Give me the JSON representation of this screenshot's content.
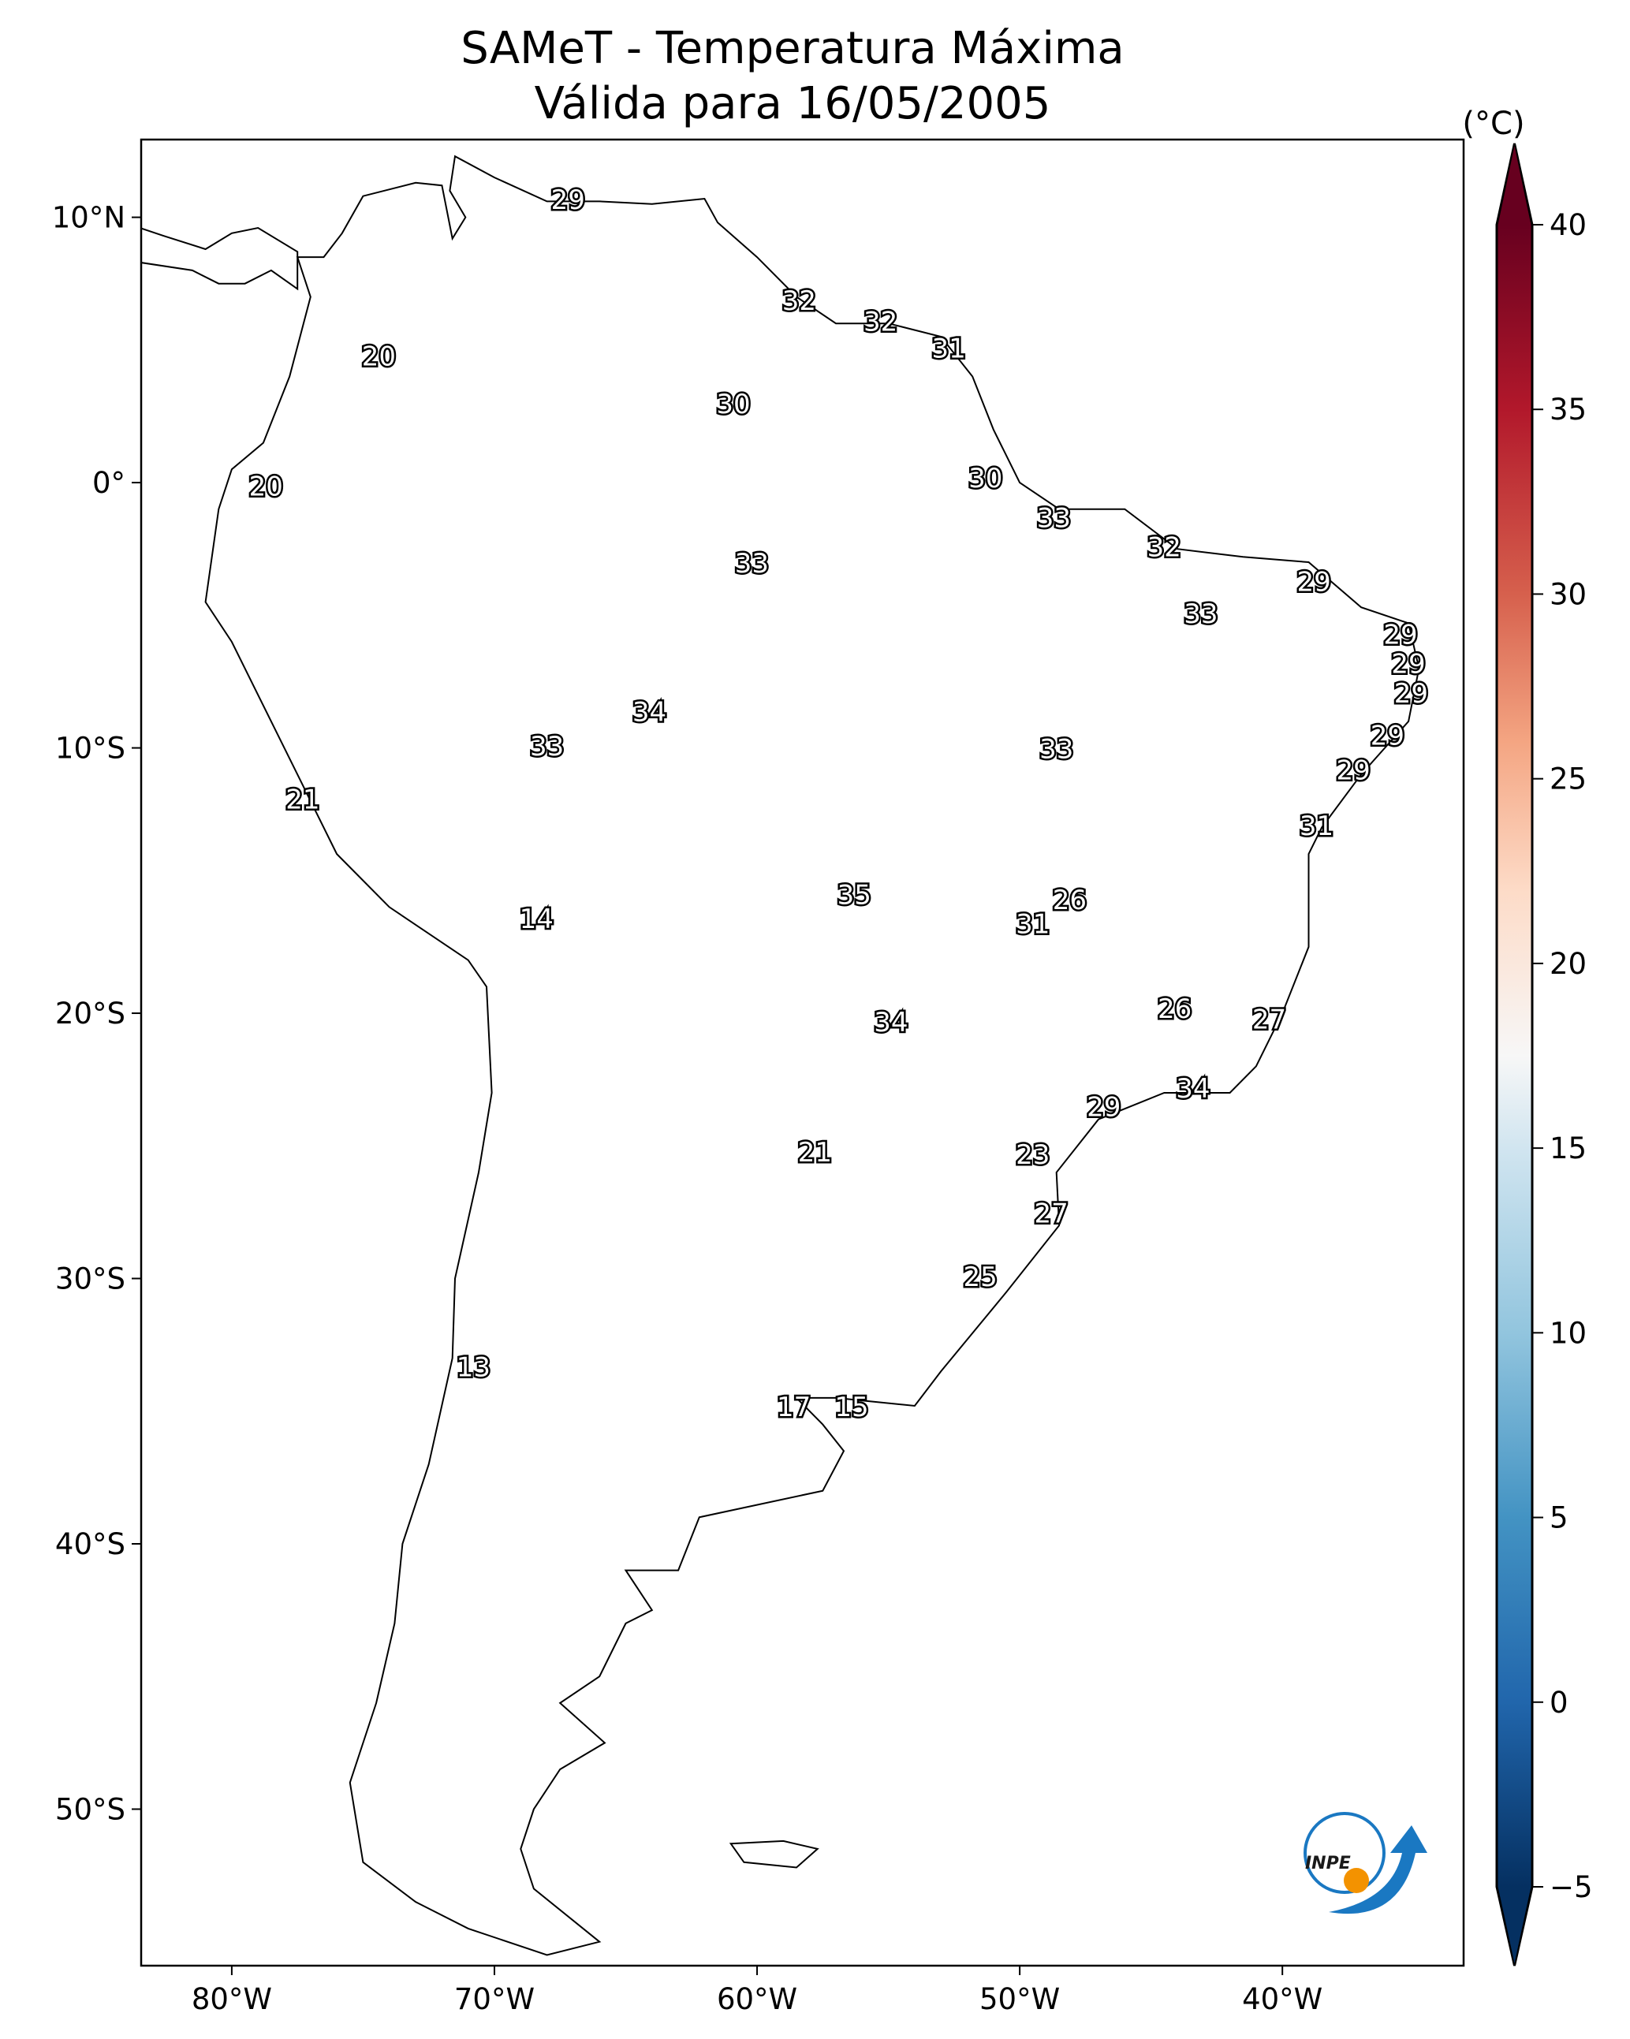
{
  "title": {
    "line1": "SAMeT - Temperatura Máxima",
    "line2": "Válida para 16/05/2005"
  },
  "colorbar": {
    "unit_label": "(°C)",
    "ticks": [
      40,
      35,
      30,
      25,
      20,
      15,
      10,
      5,
      0,
      -5
    ],
    "range": [
      -5,
      40
    ],
    "extend": "both",
    "colormap": "RdBu_r",
    "stops": [
      {
        "value": -5,
        "color": "#053061"
      },
      {
        "value": 0,
        "color": "#2166ac"
      },
      {
        "value": 5,
        "color": "#4393c3"
      },
      {
        "value": 10,
        "color": "#92c5de"
      },
      {
        "value": 15,
        "color": "#d1e5f0"
      },
      {
        "value": 17.5,
        "color": "#f7f7f7"
      },
      {
        "value": 22,
        "color": "#fddbc7"
      },
      {
        "value": 26,
        "color": "#f4a582"
      },
      {
        "value": 30,
        "color": "#d6604d"
      },
      {
        "value": 35,
        "color": "#b2182b"
      },
      {
        "value": 40,
        "color": "#67001f"
      }
    ]
  },
  "axes": {
    "lon_ticks": [
      {
        "value": -80,
        "label": "80°W"
      },
      {
        "value": -70,
        "label": "70°W"
      },
      {
        "value": -60,
        "label": "60°W"
      },
      {
        "value": -50,
        "label": "50°W"
      },
      {
        "value": -40,
        "label": "40°W"
      }
    ],
    "lat_ticks": [
      {
        "value": 10,
        "label": "10°N"
      },
      {
        "value": 0,
        "label": "0°"
      },
      {
        "value": -10,
        "label": "10°S"
      },
      {
        "value": -20,
        "label": "20°S"
      },
      {
        "value": -30,
        "label": "30°S"
      },
      {
        "value": -40,
        "label": "40°S"
      },
      {
        "value": -50,
        "label": "50°S"
      }
    ],
    "lon_range": [
      -83.45,
      -33.1
    ],
    "lat_range": [
      -55.9,
      12.93
    ]
  },
  "stations": [
    {
      "value": "29",
      "lon": -67.2,
      "lat": 10.6
    },
    {
      "value": "20",
      "lon": -74.4,
      "lat": 4.7
    },
    {
      "value": "32",
      "lon": -58.4,
      "lat": 6.8
    },
    {
      "value": "32",
      "lon": -55.3,
      "lat": 6.0
    },
    {
      "value": "31",
      "lon": -52.7,
      "lat": 5.0
    },
    {
      "value": "30",
      "lon": -60.9,
      "lat": 2.9
    },
    {
      "value": "20",
      "lon": -78.7,
      "lat": -0.2
    },
    {
      "value": "30",
      "lon": -51.3,
      "lat": 0.1
    },
    {
      "value": "33",
      "lon": -48.7,
      "lat": -1.4
    },
    {
      "value": "33",
      "lon": -60.2,
      "lat": -3.1
    },
    {
      "value": "32",
      "lon": -44.5,
      "lat": -2.5
    },
    {
      "value": "29",
      "lon": -38.8,
      "lat": -3.8
    },
    {
      "value": "33",
      "lon": -43.1,
      "lat": -5.0
    },
    {
      "value": "29",
      "lon": -35.5,
      "lat": -5.8
    },
    {
      "value": "29",
      "lon": -35.2,
      "lat": -6.9
    },
    {
      "value": "29",
      "lon": -35.1,
      "lat": -8.0
    },
    {
      "value": "34",
      "lon": -64.1,
      "lat": -8.7
    },
    {
      "value": "33",
      "lon": -68.0,
      "lat": -10.0
    },
    {
      "value": "33",
      "lon": -48.6,
      "lat": -10.1
    },
    {
      "value": "29",
      "lon": -36.0,
      "lat": -9.6
    },
    {
      "value": "29",
      "lon": -37.3,
      "lat": -10.9
    },
    {
      "value": "21",
      "lon": -77.3,
      "lat": -12.0
    },
    {
      "value": "31",
      "lon": -38.7,
      "lat": -13.0
    },
    {
      "value": "35",
      "lon": -56.3,
      "lat": -15.6
    },
    {
      "value": "26",
      "lon": -48.1,
      "lat": -15.8
    },
    {
      "value": "14",
      "lon": -68.4,
      "lat": -16.5
    },
    {
      "value": "31",
      "lon": -49.5,
      "lat": -16.7
    },
    {
      "value": "26",
      "lon": -44.1,
      "lat": -19.9
    },
    {
      "value": "34",
      "lon": -54.9,
      "lat": -20.4
    },
    {
      "value": "27",
      "lon": -40.5,
      "lat": -20.3
    },
    {
      "value": "34",
      "lon": -43.4,
      "lat": -22.9
    },
    {
      "value": "29",
      "lon": -46.8,
      "lat": -23.6
    },
    {
      "value": "21",
      "lon": -57.8,
      "lat": -25.3
    },
    {
      "value": "23",
      "lon": -49.5,
      "lat": -25.4
    },
    {
      "value": "27",
      "lon": -48.8,
      "lat": -27.6
    },
    {
      "value": "25",
      "lon": -51.5,
      "lat": -30.0
    },
    {
      "value": "13",
      "lon": -70.8,
      "lat": -33.4
    },
    {
      "value": "17",
      "lon": -58.6,
      "lat": -34.9
    },
    {
      "value": "15",
      "lon": -56.4,
      "lat": -34.9
    }
  ],
  "logo": {
    "text": "INPE",
    "colors": {
      "blue": "#1a78c2",
      "orange": "#f39200"
    }
  }
}
